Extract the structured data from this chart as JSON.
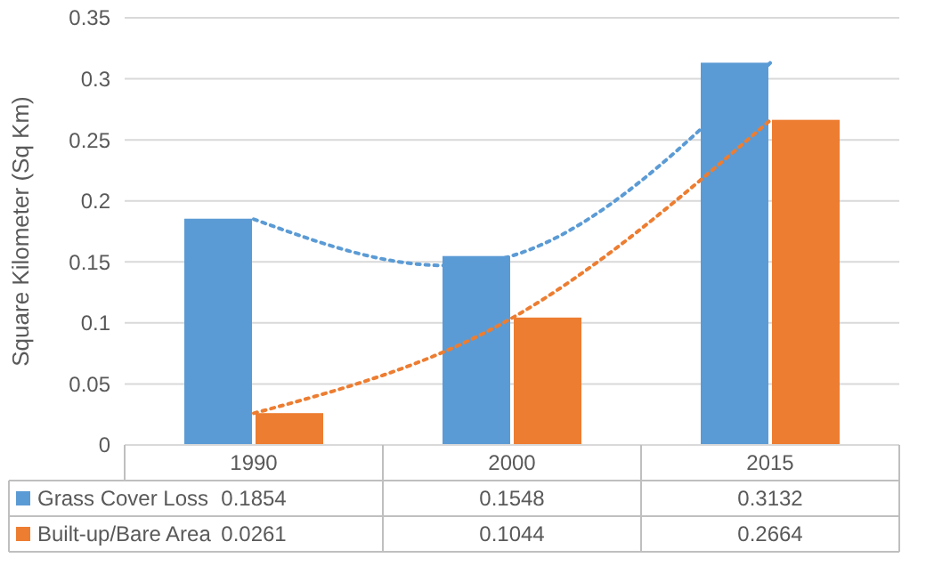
{
  "chart_data": {
    "type": "bar",
    "ylabel": "Square Kilometer (Sq Km)",
    "categories": [
      "1990",
      "2000",
      "2015"
    ],
    "series": [
      {
        "name": "Grass Cover Loss",
        "color": "#5b9bd5",
        "values": [
          0.1854,
          0.1548,
          0.3132
        ]
      },
      {
        "name": "Built-up/Bare Area",
        "color": "#ed7d31",
        "values": [
          0.0261,
          0.1044,
          0.2664
        ]
      },
      {
        "type": "line",
        "color": "#5b9bd5",
        "values": [
          0.185,
          0.155,
          0.313
        ],
        "value_labels": [
          null,
          null,
          null
        ]
      },
      {
        "type": "line",
        "color": "#ed7d31",
        "values": [
          0.026,
          0.104,
          0.266
        ],
        "value_labels": [
          null,
          null,
          null
        ]
      }
    ],
    "ylim": [
      0,
      0.35
    ],
    "yticks": [
      0,
      0.05,
      0.1,
      0.15,
      0.2,
      0.25,
      0.3,
      0.35
    ],
    "grid": "y",
    "line_style": "dotted",
    "marker": "none",
    "legend": "bottom",
    "data_labels": true
  }
}
